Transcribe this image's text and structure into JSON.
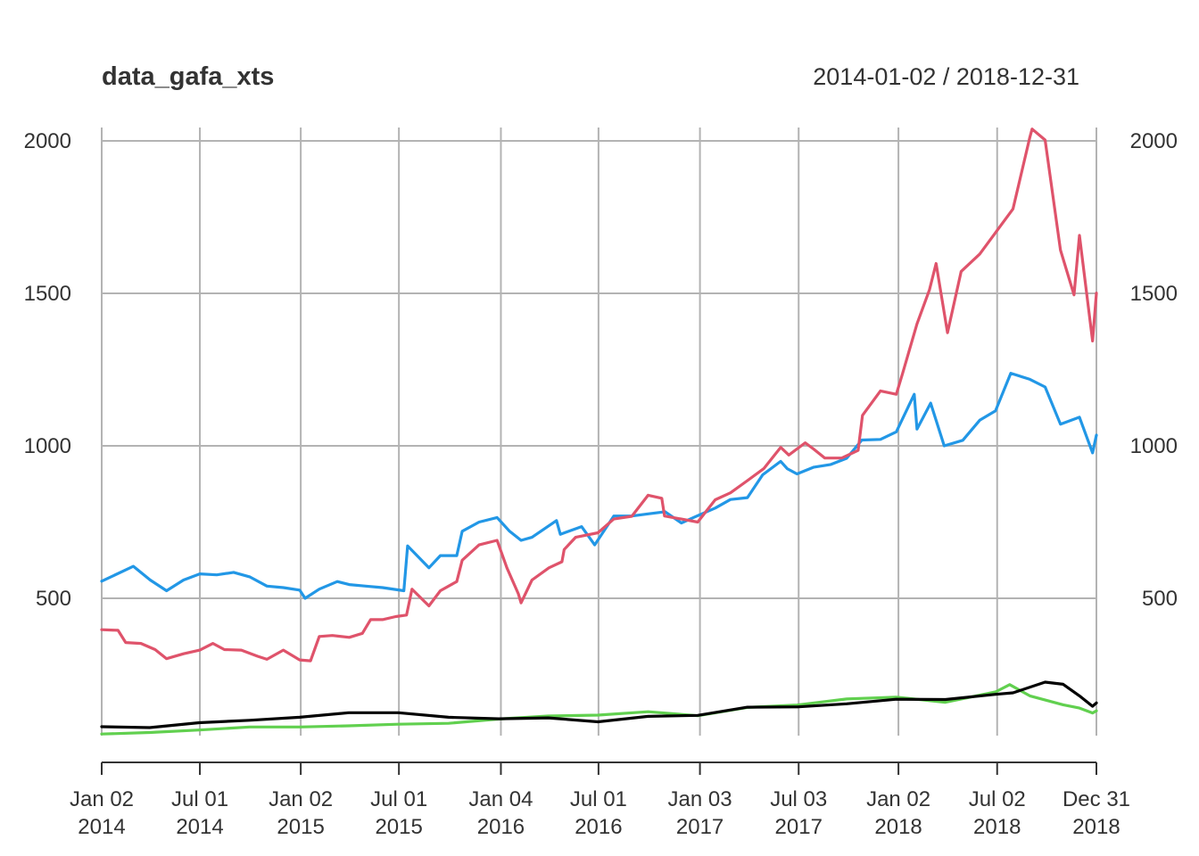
{
  "chart_data": {
    "type": "line",
    "title": "data_gafa_xts",
    "date_range": "2014-01-02 / 2018-12-31",
    "xlim": [
      "2014-01-02",
      "2018-12-31"
    ],
    "ylim": [
      0,
      2050
    ],
    "grid": true,
    "legend": "none",
    "y_ticks": [
      500,
      1000,
      1500,
      2000
    ],
    "x_ticks": [
      {
        "date": "2014-01-02",
        "label1": "Jan 02",
        "label2": "2014"
      },
      {
        "date": "2014-07-01",
        "label1": "Jul 01",
        "label2": "2014"
      },
      {
        "date": "2015-01-02",
        "label1": "Jan 02",
        "label2": "2015"
      },
      {
        "date": "2015-07-01",
        "label1": "Jul 01",
        "label2": "2015"
      },
      {
        "date": "2016-01-04",
        "label1": "Jan 04",
        "label2": "2016"
      },
      {
        "date": "2016-07-01",
        "label1": "Jul 01",
        "label2": "2016"
      },
      {
        "date": "2017-01-03",
        "label1": "Jan 03",
        "label2": "2017"
      },
      {
        "date": "2017-07-03",
        "label1": "Jul 03",
        "label2": "2017"
      },
      {
        "date": "2018-01-02",
        "label1": "Jan 02",
        "label2": "2018"
      },
      {
        "date": "2018-07-02",
        "label1": "Jul 02",
        "label2": "2018"
      },
      {
        "date": "2018-12-31",
        "label1": "Dec 31",
        "label2": "2018"
      }
    ],
    "series": [
      {
        "color": "#df536b",
        "points": [
          [
            "2014-01-02",
            397
          ],
          [
            "2014-02-01",
            395
          ],
          [
            "2014-02-15",
            355
          ],
          [
            "2014-03-15",
            352
          ],
          [
            "2014-04-10",
            332
          ],
          [
            "2014-05-01",
            302
          ],
          [
            "2014-06-01",
            318
          ],
          [
            "2014-07-01",
            330
          ],
          [
            "2014-07-25",
            352
          ],
          [
            "2014-08-15",
            332
          ],
          [
            "2014-09-15",
            330
          ],
          [
            "2014-10-15",
            310
          ],
          [
            "2014-11-01",
            300
          ],
          [
            "2014-12-01",
            330
          ],
          [
            "2014-12-31",
            298
          ],
          [
            "2015-01-20",
            295
          ],
          [
            "2015-02-05",
            375
          ],
          [
            "2015-03-01",
            378
          ],
          [
            "2015-04-01",
            372
          ],
          [
            "2015-04-25",
            385
          ],
          [
            "2015-05-10",
            430
          ],
          [
            "2015-06-01",
            430
          ],
          [
            "2015-06-25",
            440
          ],
          [
            "2015-07-15",
            445
          ],
          [
            "2015-07-25",
            530
          ],
          [
            "2015-08-25",
            475
          ],
          [
            "2015-09-15",
            525
          ],
          [
            "2015-10-15",
            555
          ],
          [
            "2015-10-25",
            625
          ],
          [
            "2015-11-25",
            675
          ],
          [
            "2015-12-28",
            690
          ],
          [
            "2016-01-15",
            600
          ],
          [
            "2016-02-05",
            515
          ],
          [
            "2016-02-10",
            485
          ],
          [
            "2016-03-01",
            560
          ],
          [
            "2016-04-01",
            600
          ],
          [
            "2016-04-25",
            620
          ],
          [
            "2016-04-29",
            660
          ],
          [
            "2016-05-20",
            700
          ],
          [
            "2016-06-30",
            715
          ],
          [
            "2016-07-29",
            760
          ],
          [
            "2016-08-31",
            769
          ],
          [
            "2016-09-30",
            838
          ],
          [
            "2016-10-25",
            828
          ],
          [
            "2016-10-30",
            770
          ],
          [
            "2016-11-30",
            760
          ],
          [
            "2016-12-30",
            750
          ],
          [
            "2017-01-31",
            823
          ],
          [
            "2017-02-28",
            846
          ],
          [
            "2017-03-31",
            886
          ],
          [
            "2017-04-30",
            925
          ],
          [
            "2017-05-31",
            995
          ],
          [
            "2017-06-15",
            970
          ],
          [
            "2017-07-15",
            1010
          ],
          [
            "2017-07-30",
            990
          ],
          [
            "2017-08-20",
            960
          ],
          [
            "2017-09-20",
            960
          ],
          [
            "2017-10-20",
            985
          ],
          [
            "2017-10-28",
            1100
          ],
          [
            "2017-11-30",
            1180
          ],
          [
            "2017-12-29",
            1169
          ],
          [
            "2018-01-10",
            1240
          ],
          [
            "2018-02-05",
            1400
          ],
          [
            "2018-02-28",
            1512
          ],
          [
            "2018-03-12",
            1598
          ],
          [
            "2018-04-02",
            1371
          ],
          [
            "2018-04-27",
            1572
          ],
          [
            "2018-05-31",
            1629
          ],
          [
            "2018-06-29",
            1699
          ],
          [
            "2018-07-31",
            1777
          ],
          [
            "2018-08-31",
            2012
          ],
          [
            "2018-09-04",
            2039
          ],
          [
            "2018-09-28",
            2003
          ],
          [
            "2018-10-26",
            1642
          ],
          [
            "2018-11-20",
            1495
          ],
          [
            "2018-11-30",
            1690
          ],
          [
            "2018-12-24",
            1344
          ],
          [
            "2018-12-31",
            1501
          ]
        ]
      },
      {
        "color": "#2297e6",
        "points": [
          [
            "2014-01-02",
            556
          ],
          [
            "2014-03-01",
            605
          ],
          [
            "2014-04-01",
            560
          ],
          [
            "2014-05-01",
            525
          ],
          [
            "2014-06-01",
            560
          ],
          [
            "2014-07-01",
            580
          ],
          [
            "2014-08-01",
            577
          ],
          [
            "2014-09-01",
            585
          ],
          [
            "2014-10-01",
            570
          ],
          [
            "2014-11-01",
            540
          ],
          [
            "2014-12-01",
            535
          ],
          [
            "2014-12-31",
            527
          ],
          [
            "2015-01-10",
            500
          ],
          [
            "2015-02-05",
            530
          ],
          [
            "2015-03-10",
            555
          ],
          [
            "2015-04-01",
            545
          ],
          [
            "2015-05-01",
            540
          ],
          [
            "2015-06-01",
            535
          ],
          [
            "2015-07-10",
            525
          ],
          [
            "2015-07-17",
            672
          ],
          [
            "2015-08-25",
            600
          ],
          [
            "2015-09-15",
            640
          ],
          [
            "2015-10-15",
            640
          ],
          [
            "2015-10-25",
            720
          ],
          [
            "2015-11-25",
            750
          ],
          [
            "2015-12-28",
            765
          ],
          [
            "2016-01-20",
            720
          ],
          [
            "2016-02-10",
            690
          ],
          [
            "2016-03-01",
            700
          ],
          [
            "2016-04-15",
            755
          ],
          [
            "2016-04-22",
            710
          ],
          [
            "2016-05-31",
            735
          ],
          [
            "2016-06-24",
            675
          ],
          [
            "2016-07-29",
            770
          ],
          [
            "2016-08-31",
            770
          ],
          [
            "2016-09-30",
            777
          ],
          [
            "2016-10-31",
            784
          ],
          [
            "2016-11-30",
            747
          ],
          [
            "2016-12-30",
            771
          ],
          [
            "2017-01-31",
            796
          ],
          [
            "2017-02-28",
            824
          ],
          [
            "2017-03-31",
            830
          ],
          [
            "2017-04-28",
            905
          ],
          [
            "2017-05-31",
            949
          ],
          [
            "2017-06-12",
            925
          ],
          [
            "2017-06-30",
            908
          ],
          [
            "2017-07-31",
            930
          ],
          [
            "2017-08-31",
            939
          ],
          [
            "2017-09-29",
            959
          ],
          [
            "2017-10-27",
            1019
          ],
          [
            "2017-11-30",
            1021
          ],
          [
            "2017-12-29",
            1046
          ],
          [
            "2018-01-31",
            1169
          ],
          [
            "2018-02-05",
            1055
          ],
          [
            "2018-03-02",
            1140
          ],
          [
            "2018-03-27",
            1000
          ],
          [
            "2018-04-30",
            1018
          ],
          [
            "2018-05-31",
            1084
          ],
          [
            "2018-06-29",
            1115
          ],
          [
            "2018-07-27",
            1238
          ],
          [
            "2018-08-31",
            1218
          ],
          [
            "2018-09-28",
            1193
          ],
          [
            "2018-10-26",
            1071
          ],
          [
            "2018-11-30",
            1094
          ],
          [
            "2018-12-24",
            977
          ],
          [
            "2018-12-31",
            1035
          ]
        ]
      },
      {
        "color": "#000000",
        "points": [
          [
            "2014-01-02",
            79
          ],
          [
            "2014-03-31",
            76
          ],
          [
            "2014-06-30",
            92
          ],
          [
            "2014-09-30",
            100
          ],
          [
            "2014-12-31",
            110
          ],
          [
            "2015-03-31",
            125
          ],
          [
            "2015-06-30",
            125
          ],
          [
            "2015-09-30",
            110
          ],
          [
            "2015-12-31",
            105
          ],
          [
            "2016-03-31",
            108
          ],
          [
            "2016-06-30",
            95
          ],
          [
            "2016-09-30",
            113
          ],
          [
            "2016-12-30",
            116
          ],
          [
            "2017-03-31",
            143
          ],
          [
            "2017-06-30",
            144
          ],
          [
            "2017-09-29",
            154
          ],
          [
            "2017-12-29",
            169
          ],
          [
            "2018-03-29",
            168
          ],
          [
            "2018-06-29",
            185
          ],
          [
            "2018-07-31",
            190
          ],
          [
            "2018-09-28",
            225
          ],
          [
            "2018-10-31",
            218
          ],
          [
            "2018-11-30",
            180
          ],
          [
            "2018-12-24",
            146
          ],
          [
            "2018-12-31",
            157
          ]
        ]
      },
      {
        "color": "#61d04f",
        "points": [
          [
            "2014-01-02",
            55
          ],
          [
            "2014-03-31",
            60
          ],
          [
            "2014-06-30",
            68
          ],
          [
            "2014-09-30",
            78
          ],
          [
            "2014-12-31",
            78
          ],
          [
            "2015-03-31",
            82
          ],
          [
            "2015-06-30",
            87
          ],
          [
            "2015-09-30",
            90
          ],
          [
            "2015-12-31",
            104
          ],
          [
            "2016-03-31",
            114
          ],
          [
            "2016-06-30",
            117
          ],
          [
            "2016-09-30",
            128
          ],
          [
            "2016-12-30",
            115
          ],
          [
            "2017-03-31",
            142
          ],
          [
            "2017-06-30",
            150
          ],
          [
            "2017-09-29",
            170
          ],
          [
            "2017-12-29",
            176
          ],
          [
            "2018-03-29",
            159
          ],
          [
            "2018-06-29",
            193
          ],
          [
            "2018-07-25",
            217
          ],
          [
            "2018-08-31",
            180
          ],
          [
            "2018-10-31",
            151
          ],
          [
            "2018-11-30",
            140
          ],
          [
            "2018-12-24",
            124
          ],
          [
            "2018-12-31",
            131
          ]
        ]
      }
    ]
  }
}
